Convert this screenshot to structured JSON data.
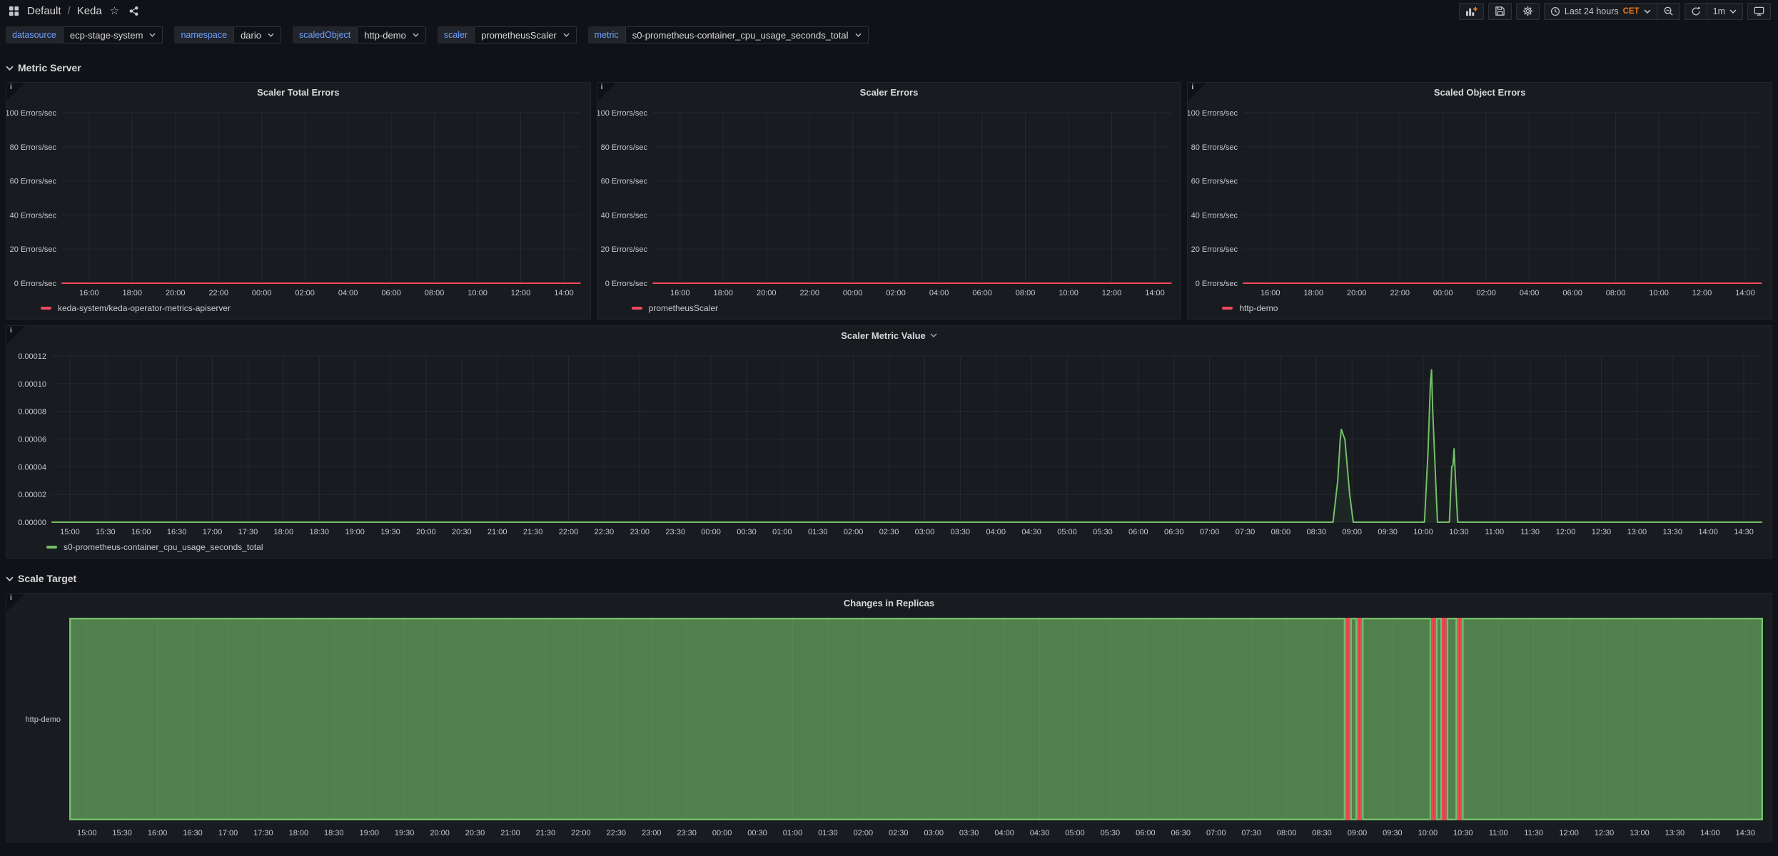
{
  "nav": {
    "breadcrumb_folder": "Default",
    "breadcrumb_separator": "/",
    "dashboard_title": "Keda",
    "time_range": "Last 24 hours",
    "timezone": "CET",
    "refresh_interval": "1m"
  },
  "variables": [
    {
      "label": "datasource",
      "value": "ecp-stage-system"
    },
    {
      "label": "namespace",
      "value": "dario"
    },
    {
      "label": "scaledObject",
      "value": "http-demo"
    },
    {
      "label": "scaler",
      "value": "prometheusScaler"
    },
    {
      "label": "metric",
      "value": "s0-prometheus-container_cpu_usage_seconds_total"
    }
  ],
  "sections": [
    {
      "title": "Metric Server"
    },
    {
      "title": "Scale Target"
    }
  ],
  "colors": {
    "red": "#F2495C",
    "green": "#73BF69",
    "blue": "#6E9FFF",
    "orange": "#EB7B18"
  },
  "chart_data": [
    {
      "type": "line",
      "title": "Scaler Total Errors",
      "ylabel": "Errors/sec",
      "ylim": [
        0,
        100
      ],
      "y_ticks": [
        {
          "v": 100,
          "label": "100 Errors/sec"
        },
        {
          "v": 80,
          "label": "80 Errors/sec"
        },
        {
          "v": 60,
          "label": "60 Errors/sec"
        },
        {
          "v": 40,
          "label": "40 Errors/sec"
        },
        {
          "v": 20,
          "label": "20 Errors/sec"
        },
        {
          "v": 0,
          "label": "0 Errors/sec"
        }
      ],
      "x_ticks": [
        "16:00",
        "18:00",
        "20:00",
        "22:00",
        "00:00",
        "02:00",
        "04:00",
        "06:00",
        "08:00",
        "10:00",
        "12:00",
        "14:00"
      ],
      "series": [
        {
          "name": "keda-system/keda-operator-metrics-apiserver",
          "color": "#F2495C",
          "points": [
            [
              -15,
              0
            ],
            [
              1425,
              0
            ]
          ]
        }
      ],
      "legend_position": "bottom",
      "grid": true
    },
    {
      "type": "line",
      "title": "Scaler Errors",
      "ylabel": "Errors/sec",
      "ylim": [
        0,
        100
      ],
      "y_ticks": [
        {
          "v": 100,
          "label": "100 Errors/sec"
        },
        {
          "v": 80,
          "label": "80 Errors/sec"
        },
        {
          "v": 60,
          "label": "60 Errors/sec"
        },
        {
          "v": 40,
          "label": "40 Errors/sec"
        },
        {
          "v": 20,
          "label": "20 Errors/sec"
        },
        {
          "v": 0,
          "label": "0 Errors/sec"
        }
      ],
      "x_ticks": [
        "16:00",
        "18:00",
        "20:00",
        "22:00",
        "00:00",
        "02:00",
        "04:00",
        "06:00",
        "08:00",
        "10:00",
        "12:00",
        "14:00"
      ],
      "series": [
        {
          "name": "prometheusScaler",
          "color": "#F2495C",
          "points": [
            [
              -15,
              0
            ],
            [
              1425,
              0
            ]
          ]
        }
      ],
      "legend_position": "bottom",
      "grid": true
    },
    {
      "type": "line",
      "title": "Scaled Object Errors",
      "ylabel": "Errors/sec",
      "ylim": [
        0,
        100
      ],
      "y_ticks": [
        {
          "v": 100,
          "label": "100 Errors/sec"
        },
        {
          "v": 80,
          "label": "80 Errors/sec"
        },
        {
          "v": 60,
          "label": "60 Errors/sec"
        },
        {
          "v": 40,
          "label": "40 Errors/sec"
        },
        {
          "v": 20,
          "label": "20 Errors/sec"
        },
        {
          "v": 0,
          "label": "0 Errors/sec"
        }
      ],
      "x_ticks": [
        "16:00",
        "18:00",
        "20:00",
        "22:00",
        "00:00",
        "02:00",
        "04:00",
        "06:00",
        "08:00",
        "10:00",
        "12:00",
        "14:00"
      ],
      "series": [
        {
          "name": "http-demo",
          "color": "#F2495C",
          "points": [
            [
              -15,
              0
            ],
            [
              1425,
              0
            ]
          ]
        }
      ],
      "legend_position": "bottom",
      "grid": true
    },
    {
      "type": "line",
      "title": "Scaler Metric Value",
      "title_chevron": true,
      "ylim": [
        0,
        0.00012
      ],
      "y_ticks": [
        {
          "v": 0.00012,
          "label": "0.00012"
        },
        {
          "v": 0.0001,
          "label": "0.00010"
        },
        {
          "v": 8e-05,
          "label": "0.00008"
        },
        {
          "v": 6e-05,
          "label": "0.00006"
        },
        {
          "v": 4e-05,
          "label": "0.00004"
        },
        {
          "v": 2e-05,
          "label": "0.00002"
        },
        {
          "v": 0.0,
          "label": "0.00000"
        }
      ],
      "x_ticks": [
        "15:00",
        "15:30",
        "16:00",
        "16:30",
        "17:00",
        "17:30",
        "18:00",
        "18:30",
        "19:00",
        "19:30",
        "20:00",
        "20:30",
        "21:00",
        "21:30",
        "22:00",
        "22:30",
        "23:00",
        "23:30",
        "00:00",
        "00:30",
        "01:00",
        "01:30",
        "02:00",
        "02:30",
        "03:00",
        "03:30",
        "04:00",
        "04:30",
        "05:00",
        "05:30",
        "06:00",
        "06:30",
        "07:00",
        "07:30",
        "08:00",
        "08:30",
        "09:00",
        "09:30",
        "10:00",
        "10:30",
        "11:00",
        "11:30",
        "12:00",
        "12:30",
        "13:00",
        "13:30",
        "14:00",
        "14:30"
      ],
      "series": [
        {
          "name": "s0-prometheus-container_cpu_usage_seconds_total",
          "color": "#73BF69",
          "fill": "rgba(115,191,105,0.08)",
          "points": [
            [
              -15,
              0
            ],
            [
              1064,
              0
            ],
            [
              1068,
              3e-05
            ],
            [
              1070,
              5.9e-05
            ],
            [
              1071,
              6.7e-05
            ],
            [
              1073,
              6.2e-05
            ],
            [
              1074,
              6e-05
            ],
            [
              1078,
              2e-05
            ],
            [
              1081,
              0
            ],
            [
              1141,
              0
            ],
            [
              1144,
              5e-05
            ],
            [
              1146,
              0.0001
            ],
            [
              1147,
              0.00011
            ],
            [
              1148,
              8e-05
            ],
            [
              1150,
              4e-05
            ],
            [
              1152,
              0
            ],
            [
              1162,
              0
            ],
            [
              1164,
              4e-05
            ],
            [
              1165,
              4.1e-05
            ],
            [
              1166,
              5.3e-05
            ],
            [
              1167,
              3.4e-05
            ],
            [
              1169,
              0
            ],
            [
              1425,
              0
            ]
          ]
        }
      ],
      "legend_position": "bottom",
      "grid": true
    },
    {
      "type": "timeline",
      "title": "Changes in Replicas",
      "row_label": "http-demo",
      "x_ticks": [
        "15:00",
        "15:30",
        "16:00",
        "16:30",
        "17:00",
        "17:30",
        "18:00",
        "18:30",
        "19:00",
        "19:30",
        "20:00",
        "20:30",
        "21:00",
        "21:30",
        "22:00",
        "22:30",
        "23:00",
        "23:30",
        "00:00",
        "00:30",
        "01:00",
        "01:30",
        "02:00",
        "02:30",
        "03:00",
        "03:30",
        "04:00",
        "04:30",
        "05:00",
        "05:30",
        "06:00",
        "06:30",
        "07:00",
        "07:30",
        "08:00",
        "08:30",
        "09:00",
        "09:30",
        "10:00",
        "10:30",
        "11:00",
        "11:30",
        "12:00",
        "12:30",
        "13:00",
        "13:30",
        "14:00",
        "14:30"
      ],
      "states": {
        "ok": {
          "fill": "rgba(115,191,105,0.62)",
          "stroke": "#73BF69"
        },
        "error": {
          "fill": "rgba(242,73,92,0.85)",
          "stroke": "#F2495C"
        }
      },
      "segments": [
        [
          -15,
          1070,
          "ok"
        ],
        [
          1070,
          1074,
          "error"
        ],
        [
          1074,
          1080,
          "ok"
        ],
        [
          1080,
          1084,
          "error"
        ],
        [
          1084,
          1143,
          "ok"
        ],
        [
          1143,
          1147,
          "error"
        ],
        [
          1147,
          1152,
          "ok"
        ],
        [
          1152,
          1156,
          "error"
        ],
        [
          1156,
          1165,
          "ok"
        ],
        [
          1165,
          1169,
          "error"
        ],
        [
          1169,
          1425,
          "ok"
        ]
      ],
      "grid": true
    }
  ]
}
